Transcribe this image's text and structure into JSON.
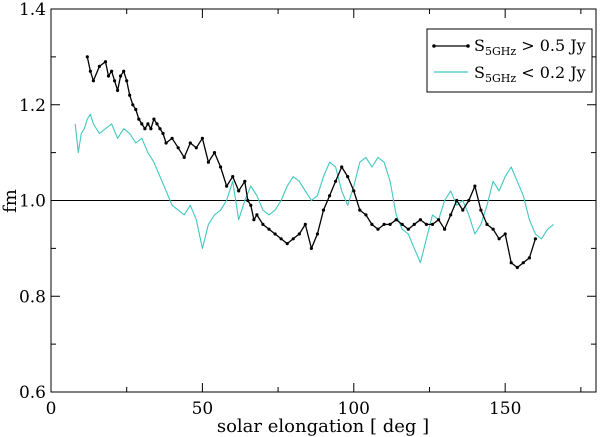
{
  "chart_data": {
    "type": "line",
    "title": "",
    "xlabel": "solar elongation [ deg ]",
    "ylabel": "fm",
    "xlim": [
      0,
      180
    ],
    "ylim": [
      0.6,
      1.4
    ],
    "x_ticks": [
      0,
      50,
      100,
      150
    ],
    "y_ticks": [
      0.6,
      0.8,
      1.0,
      1.2,
      1.4
    ],
    "x_tick_labels": [
      "0",
      "50",
      "100",
      "150"
    ],
    "y_tick_labels": [
      "0.6",
      "0.8",
      "1.0",
      "1.2",
      "1.4"
    ],
    "reference_line": {
      "y": 1.0,
      "color": "#000000"
    },
    "grid": false,
    "legend_position": "top-right",
    "series": [
      {
        "name": "S5GHz > 0.5 Jy",
        "label_base": "S",
        "label_sub": "5GHz",
        "label_rest": " > 0.5 Jy",
        "color": "#000000",
        "markers": true,
        "x": [
          12,
          13,
          14,
          16,
          18,
          19,
          20,
          21,
          22,
          23,
          24,
          25,
          26,
          27,
          28,
          29,
          30,
          31,
          32,
          33,
          34,
          35,
          36,
          37,
          38,
          40,
          42,
          44,
          46,
          48,
          50,
          52,
          54,
          56,
          58,
          60,
          62,
          64,
          65,
          66,
          67,
          68,
          70,
          72,
          74,
          76,
          78,
          80,
          82,
          84,
          86,
          88,
          90,
          92,
          94,
          96,
          98,
          100,
          102,
          104,
          106,
          108,
          110,
          112,
          114,
          116,
          118,
          120,
          122,
          124,
          126,
          128,
          130,
          132,
          134,
          136,
          138,
          140,
          142,
          144,
          146,
          148,
          150,
          152,
          154,
          156,
          158,
          160
        ],
        "y": [
          1.3,
          1.27,
          1.25,
          1.28,
          1.29,
          1.26,
          1.27,
          1.25,
          1.23,
          1.26,
          1.27,
          1.25,
          1.22,
          1.2,
          1.19,
          1.17,
          1.16,
          1.15,
          1.16,
          1.15,
          1.17,
          1.16,
          1.15,
          1.14,
          1.12,
          1.13,
          1.11,
          1.09,
          1.12,
          1.11,
          1.13,
          1.08,
          1.1,
          1.07,
          1.03,
          1.05,
          1.02,
          1.04,
          1.0,
          0.99,
          0.96,
          0.97,
          0.95,
          0.94,
          0.93,
          0.92,
          0.91,
          0.92,
          0.93,
          0.95,
          0.9,
          0.93,
          0.98,
          1.01,
          1.04,
          1.07,
          1.05,
          1.02,
          0.98,
          0.97,
          0.95,
          0.94,
          0.95,
          0.95,
          0.96,
          0.95,
          0.94,
          0.95,
          0.96,
          0.95,
          0.95,
          0.96,
          0.94,
          0.97,
          1.0,
          0.98,
          1.0,
          1.03,
          0.98,
          0.95,
          0.94,
          0.92,
          0.93,
          0.87,
          0.86,
          0.87,
          0.88,
          0.92
        ]
      },
      {
        "name": "S5GHz < 0.2 Jy",
        "label_base": "S",
        "label_sub": "5GHz",
        "label_rest": " < 0.2 Jy",
        "color": "#40c8c0",
        "markers": false,
        "x": [
          8,
          9,
          10,
          11,
          12,
          13,
          14,
          15,
          16,
          18,
          20,
          22,
          24,
          26,
          28,
          30,
          32,
          34,
          36,
          38,
          40,
          42,
          44,
          46,
          48,
          50,
          52,
          54,
          56,
          58,
          60,
          62,
          64,
          66,
          68,
          70,
          72,
          74,
          76,
          78,
          80,
          82,
          84,
          86,
          88,
          90,
          92,
          94,
          96,
          98,
          100,
          102,
          104,
          106,
          108,
          110,
          112,
          114,
          116,
          118,
          120,
          122,
          124,
          126,
          128,
          130,
          132,
          134,
          136,
          138,
          140,
          142,
          144,
          146,
          148,
          150,
          152,
          154,
          156,
          158,
          160,
          162,
          164,
          166
        ],
        "y": [
          1.16,
          1.1,
          1.14,
          1.15,
          1.17,
          1.18,
          1.16,
          1.15,
          1.14,
          1.15,
          1.16,
          1.13,
          1.15,
          1.14,
          1.12,
          1.13,
          1.1,
          1.08,
          1.05,
          1.02,
          0.99,
          0.98,
          0.97,
          0.99,
          0.96,
          0.9,
          0.95,
          0.97,
          0.98,
          1.0,
          1.04,
          0.96,
          1.0,
          1.03,
          1.01,
          0.98,
          0.97,
          0.98,
          1.0,
          1.03,
          1.05,
          1.04,
          1.02,
          1.0,
          1.01,
          1.05,
          1.08,
          1.07,
          1.02,
          0.99,
          1.03,
          1.08,
          1.09,
          1.07,
          1.09,
          1.08,
          1.04,
          0.97,
          0.94,
          0.93,
          0.9,
          0.87,
          0.92,
          0.97,
          0.96,
          1.0,
          1.02,
          0.99,
          1.0,
          0.97,
          0.93,
          0.95,
          0.99,
          1.04,
          1.02,
          1.05,
          1.07,
          1.04,
          1.01,
          0.96,
          0.93,
          0.92,
          0.94,
          0.95
        ]
      }
    ]
  }
}
